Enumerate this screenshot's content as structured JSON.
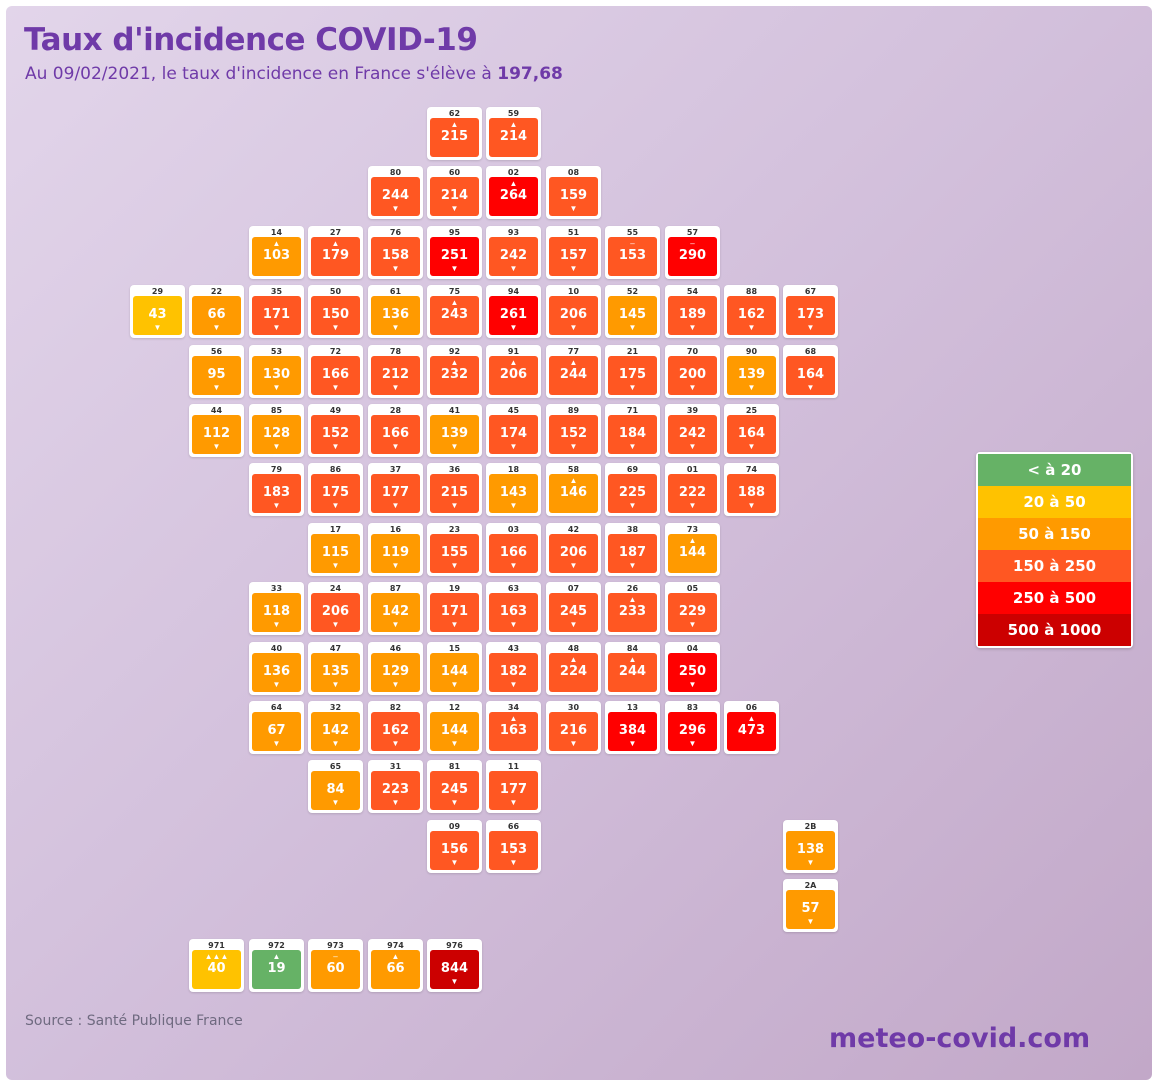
{
  "title": "Taux d'incidence COVID-19",
  "subtitle": {
    "prefix": "Au 09/02/2021, le taux d'incidence en France s'élève à ",
    "value": "197,68"
  },
  "source": "Source : Santé Publique France",
  "site": "meteo-covid.com",
  "legend": [
    {
      "label": "< à 20",
      "color": "#66b266"
    },
    {
      "label": "20 à 50",
      "color": "#ffc200"
    },
    {
      "label": "50 à 150",
      "color": "#ff9a00"
    },
    {
      "label": "150 à 250",
      "color": "#ff5722"
    },
    {
      "label": "250 à 500",
      "color": "#ff0000"
    },
    {
      "label": "500 à 1000",
      "color": "#cc0000"
    }
  ],
  "departments": [
    {
      "code": "62",
      "value": "215",
      "up": "▲",
      "down": "",
      "row": 0,
      "col": 5
    },
    {
      "code": "59",
      "value": "214",
      "up": "▲",
      "down": "",
      "row": 0,
      "col": 6
    },
    {
      "code": "80",
      "value": "244",
      "up": "",
      "down": "▼",
      "row": 1,
      "col": 4
    },
    {
      "code": "60",
      "value": "214",
      "up": "",
      "down": "▼",
      "row": 1,
      "col": 5
    },
    {
      "code": "02",
      "value": "264",
      "up": "▲",
      "down": "",
      "row": 1,
      "col": 6
    },
    {
      "code": "08",
      "value": "159",
      "up": "",
      "down": "▼",
      "row": 1,
      "col": 7
    },
    {
      "code": "14",
      "value": "103",
      "up": "▲",
      "down": "",
      "row": 2,
      "col": 2
    },
    {
      "code": "27",
      "value": "179",
      "up": "▲",
      "down": "",
      "row": 2,
      "col": 3
    },
    {
      "code": "76",
      "value": "158",
      "up": "",
      "down": "▼",
      "row": 2,
      "col": 4
    },
    {
      "code": "95",
      "value": "251",
      "up": "",
      "down": "▼",
      "row": 2,
      "col": 5
    },
    {
      "code": "93",
      "value": "242",
      "up": "",
      "down": "▼",
      "row": 2,
      "col": 6
    },
    {
      "code": "51",
      "value": "157",
      "up": "",
      "down": "▼",
      "row": 2,
      "col": 7
    },
    {
      "code": "55",
      "value": "153",
      "up": "–",
      "down": "",
      "row": 2,
      "col": 8
    },
    {
      "code": "57",
      "value": "290",
      "up": "–",
      "down": "",
      "row": 2,
      "col": 9
    },
    {
      "code": "29",
      "value": "43",
      "up": "",
      "down": "▼",
      "row": 3,
      "col": 0
    },
    {
      "code": "22",
      "value": "66",
      "up": "",
      "down": "▼",
      "row": 3,
      "col": 1
    },
    {
      "code": "35",
      "value": "171",
      "up": "",
      "down": "▼",
      "row": 3,
      "col": 2
    },
    {
      "code": "50",
      "value": "150",
      "up": "",
      "down": "▼",
      "row": 3,
      "col": 3
    },
    {
      "code": "61",
      "value": "136",
      "up": "",
      "down": "▼",
      "row": 3,
      "col": 4
    },
    {
      "code": "75",
      "value": "243",
      "up": "▲",
      "down": "",
      "row": 3,
      "col": 5
    },
    {
      "code": "94",
      "value": "261",
      "up": "",
      "down": "▼",
      "row": 3,
      "col": 6
    },
    {
      "code": "10",
      "value": "206",
      "up": "",
      "down": "▼",
      "row": 3,
      "col": 7
    },
    {
      "code": "52",
      "value": "145",
      "up": "",
      "down": "▼",
      "row": 3,
      "col": 8
    },
    {
      "code": "54",
      "value": "189",
      "up": "",
      "down": "▼",
      "row": 3,
      "col": 9
    },
    {
      "code": "88",
      "value": "162",
      "up": "",
      "down": "▼",
      "row": 3,
      "col": 10
    },
    {
      "code": "67",
      "value": "173",
      "up": "",
      "down": "▼",
      "row": 3,
      "col": 11
    },
    {
      "code": "56",
      "value": "95",
      "up": "",
      "down": "▼",
      "row": 4,
      "col": 1
    },
    {
      "code": "53",
      "value": "130",
      "up": "",
      "down": "▼",
      "row": 4,
      "col": 2
    },
    {
      "code": "72",
      "value": "166",
      "up": "",
      "down": "▼",
      "row": 4,
      "col": 3
    },
    {
      "code": "78",
      "value": "212",
      "up": "",
      "down": "▼",
      "row": 4,
      "col": 4
    },
    {
      "code": "92",
      "value": "232",
      "up": "▲",
      "down": "",
      "row": 4,
      "col": 5
    },
    {
      "code": "91",
      "value": "206",
      "up": "▲",
      "down": "",
      "row": 4,
      "col": 6
    },
    {
      "code": "77",
      "value": "244",
      "up": "▲",
      "down": "",
      "row": 4,
      "col": 7
    },
    {
      "code": "21",
      "value": "175",
      "up": "",
      "down": "▼",
      "row": 4,
      "col": 8
    },
    {
      "code": "70",
      "value": "200",
      "up": "",
      "down": "▼",
      "row": 4,
      "col": 9
    },
    {
      "code": "90",
      "value": "139",
      "up": "",
      "down": "▼",
      "row": 4,
      "col": 10
    },
    {
      "code": "68",
      "value": "164",
      "up": "",
      "down": "▼",
      "row": 4,
      "col": 11
    },
    {
      "code": "44",
      "value": "112",
      "up": "",
      "down": "▼",
      "row": 5,
      "col": 1
    },
    {
      "code": "85",
      "value": "128",
      "up": "",
      "down": "▼",
      "row": 5,
      "col": 2
    },
    {
      "code": "49",
      "value": "152",
      "up": "",
      "down": "▼",
      "row": 5,
      "col": 3
    },
    {
      "code": "28",
      "value": "166",
      "up": "",
      "down": "▼",
      "row": 5,
      "col": 4
    },
    {
      "code": "41",
      "value": "139",
      "up": "",
      "down": "▼",
      "row": 5,
      "col": 5
    },
    {
      "code": "45",
      "value": "174",
      "up": "",
      "down": "▼",
      "row": 5,
      "col": 6
    },
    {
      "code": "89",
      "value": "152",
      "up": "",
      "down": "▼",
      "row": 5,
      "col": 7
    },
    {
      "code": "71",
      "value": "184",
      "up": "",
      "down": "▼",
      "row": 5,
      "col": 8
    },
    {
      "code": "39",
      "value": "242",
      "up": "",
      "down": "▼",
      "row": 5,
      "col": 9
    },
    {
      "code": "25",
      "value": "164",
      "up": "",
      "down": "▼",
      "row": 5,
      "col": 10
    },
    {
      "code": "79",
      "value": "183",
      "up": "",
      "down": "▼",
      "row": 6,
      "col": 2
    },
    {
      "code": "86",
      "value": "175",
      "up": "",
      "down": "▼",
      "row": 6,
      "col": 3
    },
    {
      "code": "37",
      "value": "177",
      "up": "",
      "down": "▼",
      "row": 6,
      "col": 4
    },
    {
      "code": "36",
      "value": "215",
      "up": "",
      "down": "▼",
      "row": 6,
      "col": 5
    },
    {
      "code": "18",
      "value": "143",
      "up": "",
      "down": "▼",
      "row": 6,
      "col": 6
    },
    {
      "code": "58",
      "value": "146",
      "up": "▲",
      "down": "",
      "row": 6,
      "col": 7
    },
    {
      "code": "69",
      "value": "225",
      "up": "",
      "down": "▼",
      "row": 6,
      "col": 8
    },
    {
      "code": "01",
      "value": "222",
      "up": "",
      "down": "▼",
      "row": 6,
      "col": 9
    },
    {
      "code": "74",
      "value": "188",
      "up": "",
      "down": "▼",
      "row": 6,
      "col": 10
    },
    {
      "code": "17",
      "value": "115",
      "up": "",
      "down": "▼",
      "row": 7,
      "col": 3
    },
    {
      "code": "16",
      "value": "119",
      "up": "",
      "down": "▼",
      "row": 7,
      "col": 4
    },
    {
      "code": "23",
      "value": "155",
      "up": "",
      "down": "▼",
      "row": 7,
      "col": 5
    },
    {
      "code": "03",
      "value": "166",
      "up": "",
      "down": "▼",
      "row": 7,
      "col": 6
    },
    {
      "code": "42",
      "value": "206",
      "up": "",
      "down": "▼",
      "row": 7,
      "col": 7
    },
    {
      "code": "38",
      "value": "187",
      "up": "",
      "down": "▼",
      "row": 7,
      "col": 8
    },
    {
      "code": "73",
      "value": "144",
      "up": "▲",
      "down": "",
      "row": 7,
      "col": 9
    },
    {
      "code": "33",
      "value": "118",
      "up": "",
      "down": "▼",
      "row": 8,
      "col": 2
    },
    {
      "code": "24",
      "value": "206",
      "up": "",
      "down": "▼",
      "row": 8,
      "col": 3
    },
    {
      "code": "87",
      "value": "142",
      "up": "",
      "down": "▼",
      "row": 8,
      "col": 4
    },
    {
      "code": "19",
      "value": "171",
      "up": "",
      "down": "▼",
      "row": 8,
      "col": 5
    },
    {
      "code": "63",
      "value": "163",
      "up": "",
      "down": "▼",
      "row": 8,
      "col": 6
    },
    {
      "code": "07",
      "value": "245",
      "up": "",
      "down": "▼",
      "row": 8,
      "col": 7
    },
    {
      "code": "26",
      "value": "233",
      "up": "▲",
      "down": "",
      "row": 8,
      "col": 8
    },
    {
      "code": "05",
      "value": "229",
      "up": "",
      "down": "▼",
      "row": 8,
      "col": 9
    },
    {
      "code": "40",
      "value": "136",
      "up": "",
      "down": "▼",
      "row": 9,
      "col": 2
    },
    {
      "code": "47",
      "value": "135",
      "up": "",
      "down": "▼",
      "row": 9,
      "col": 3
    },
    {
      "code": "46",
      "value": "129",
      "up": "",
      "down": "▼",
      "row": 9,
      "col": 4
    },
    {
      "code": "15",
      "value": "144",
      "up": "",
      "down": "▼",
      "row": 9,
      "col": 5
    },
    {
      "code": "43",
      "value": "182",
      "up": "",
      "down": "▼",
      "row": 9,
      "col": 6
    },
    {
      "code": "48",
      "value": "224",
      "up": "▲",
      "down": "",
      "row": 9,
      "col": 7
    },
    {
      "code": "84",
      "value": "244",
      "up": "▲",
      "down": "",
      "row": 9,
      "col": 8
    },
    {
      "code": "04",
      "value": "250",
      "up": "",
      "down": "▼",
      "row": 9,
      "col": 9
    },
    {
      "code": "64",
      "value": "67",
      "up": "",
      "down": "▼",
      "row": 10,
      "col": 2
    },
    {
      "code": "32",
      "value": "142",
      "up": "",
      "down": "▼",
      "row": 10,
      "col": 3
    },
    {
      "code": "82",
      "value": "162",
      "up": "",
      "down": "▼",
      "row": 10,
      "col": 4
    },
    {
      "code": "12",
      "value": "144",
      "up": "",
      "down": "▼",
      "row": 10,
      "col": 5
    },
    {
      "code": "34",
      "value": "163",
      "up": "▲",
      "down": "",
      "row": 10,
      "col": 6
    },
    {
      "code": "30",
      "value": "216",
      "up": "",
      "down": "▼",
      "row": 10,
      "col": 7
    },
    {
      "code": "13",
      "value": "384",
      "up": "",
      "down": "▼",
      "row": 10,
      "col": 8
    },
    {
      "code": "83",
      "value": "296",
      "up": "",
      "down": "▼",
      "row": 10,
      "col": 9
    },
    {
      "code": "06",
      "value": "473",
      "up": "▲",
      "down": "",
      "row": 10,
      "col": 10
    },
    {
      "code": "65",
      "value": "84",
      "up": "",
      "down": "▼",
      "row": 11,
      "col": 3
    },
    {
      "code": "31",
      "value": "223",
      "up": "",
      "down": "▼",
      "row": 11,
      "col": 4
    },
    {
      "code": "81",
      "value": "245",
      "up": "",
      "down": "▼",
      "row": 11,
      "col": 5
    },
    {
      "code": "11",
      "value": "177",
      "up": "",
      "down": "▼",
      "row": 11,
      "col": 6
    },
    {
      "code": "09",
      "value": "156",
      "up": "",
      "down": "▼",
      "row": 12,
      "col": 5
    },
    {
      "code": "66",
      "value": "153",
      "up": "",
      "down": "▼",
      "row": 12,
      "col": 6
    },
    {
      "code": "2B",
      "value": "138",
      "up": "",
      "down": "▼",
      "row": 12,
      "col": 11
    },
    {
      "code": "2A",
      "value": "57",
      "up": "",
      "down": "▼",
      "row": 13,
      "col": 11
    },
    {
      "code": "971",
      "value": "40",
      "up": "▲▲▲",
      "down": "",
      "row": 14,
      "col": 1
    },
    {
      "code": "972",
      "value": "19",
      "up": "▲",
      "down": "",
      "row": 14,
      "col": 2
    },
    {
      "code": "973",
      "value": "60",
      "up": "–",
      "down": "",
      "row": 14,
      "col": 3
    },
    {
      "code": "974",
      "value": "66",
      "up": "▲",
      "down": "",
      "row": 14,
      "col": 4
    },
    {
      "code": "976",
      "value": "844",
      "up": "",
      "down": "▼",
      "row": 14,
      "col": 5
    }
  ]
}
